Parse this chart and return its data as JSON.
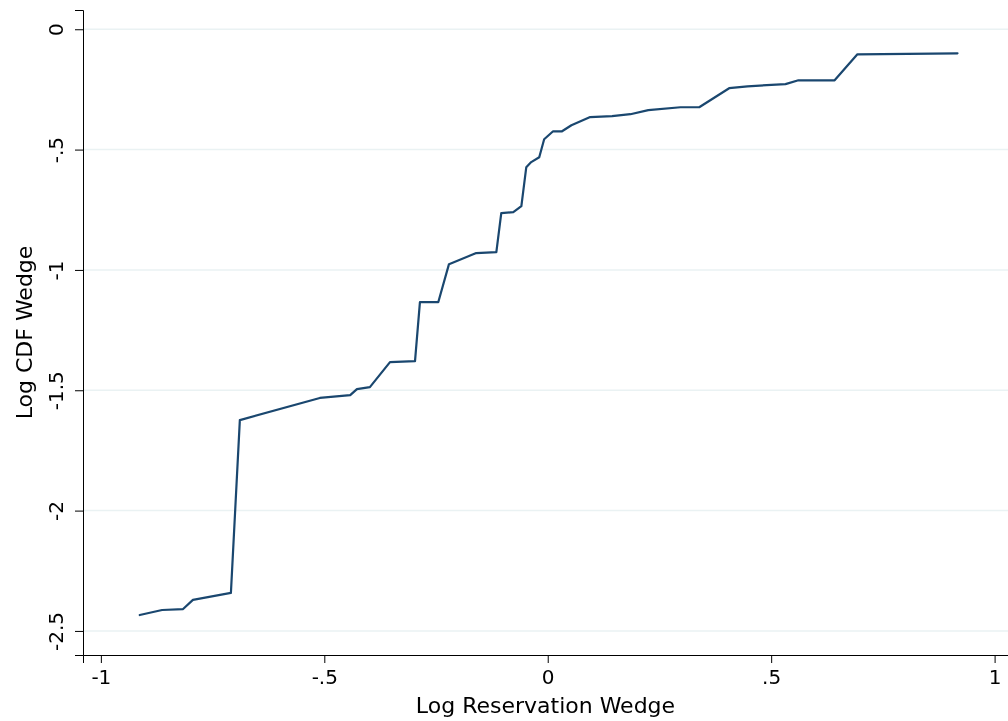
{
  "chart_data": {
    "type": "line",
    "xlabel": "Log Reservation Wedge",
    "ylabel": "Log CDF Wedge",
    "xlim": [
      -1.04,
      1.03
    ],
    "ylim": [
      -2.6,
      0.08
    ],
    "xticks": [
      {
        "value": -1,
        "label": "-1"
      },
      {
        "value": -0.5,
        "label": "-.5"
      },
      {
        "value": 0,
        "label": "0"
      },
      {
        "value": 0.5,
        "label": ".5"
      },
      {
        "value": 1,
        "label": "1"
      }
    ],
    "yticks": [
      {
        "value": -2.5,
        "label": "-2.5"
      },
      {
        "value": -2,
        "label": "-2"
      },
      {
        "value": -1.5,
        "label": "-1.5"
      },
      {
        "value": -1,
        "label": "-1"
      },
      {
        "value": -0.5,
        "label": "-.5"
      },
      {
        "value": 0,
        "label": "0"
      }
    ],
    "grid": "y",
    "line_style": "solid",
    "marker": "none",
    "series": [
      {
        "color": "#1a476f",
        "x": [
          -0.913,
          -0.863,
          -0.816,
          -0.794,
          -0.709,
          -0.689,
          -0.51,
          -0.442,
          -0.427,
          -0.398,
          -0.353,
          -0.297,
          -0.286,
          -0.245,
          -0.221,
          -0.16,
          -0.115,
          -0.104,
          -0.077,
          -0.059,
          -0.048,
          -0.037,
          -0.019,
          -0.008,
          0.012,
          0.032,
          0.053,
          0.095,
          0.144,
          0.185,
          0.225,
          0.297,
          0.339,
          0.406,
          0.447,
          0.532,
          0.561,
          0.642,
          0.693,
          0.917
        ],
        "values": [
          -2.434,
          -2.413,
          -2.409,
          -2.371,
          -2.342,
          -1.624,
          -1.532,
          -1.52,
          -1.495,
          -1.487,
          -1.383,
          -1.379,
          -1.134,
          -1.134,
          -0.976,
          -0.93,
          -0.926,
          -0.764,
          -0.76,
          -0.735,
          -0.573,
          -0.552,
          -0.532,
          -0.457,
          -0.424,
          -0.424,
          -0.399,
          -0.365,
          -0.361,
          -0.353,
          -0.336,
          -0.324,
          -0.324,
          -0.245,
          -0.237,
          -0.228,
          -0.212,
          -0.212,
          -0.104,
          -0.1
        ]
      }
    ]
  }
}
